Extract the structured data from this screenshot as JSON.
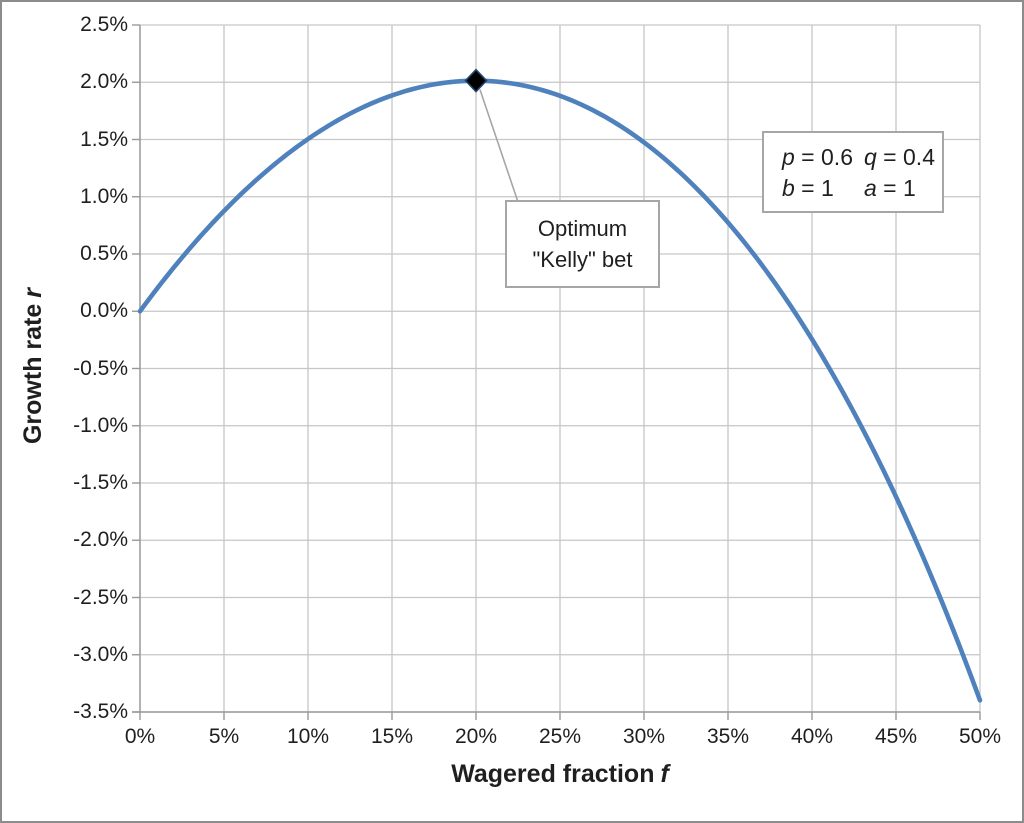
{
  "chart_data": {
    "type": "line",
    "title": "",
    "xlabel": {
      "text": "Wagered fraction",
      "symbol": "f"
    },
    "ylabel": {
      "text": "Growth rate",
      "symbol": "r"
    },
    "xlim": [
      0,
      0.5
    ],
    "ylim": [
      -0.035,
      0.025
    ],
    "grid": true,
    "x_ticks": [
      "0%",
      "5%",
      "10%",
      "15%",
      "20%",
      "25%",
      "30%",
      "35%",
      "40%",
      "45%",
      "50%"
    ],
    "y_ticks": [
      "2.5%",
      "2.0%",
      "1.5%",
      "1.0%",
      "0.5%",
      "0.0%",
      "-0.5%",
      "-1.0%",
      "-1.5%",
      "-2.0%",
      "-2.5%",
      "-3.0%",
      "-3.5%"
    ],
    "series": [
      {
        "name": "growth-rate-curve",
        "color": "#4f81bd",
        "formula_params": {
          "p": 0.6,
          "q": 0.4,
          "b": 1,
          "a": 1
        },
        "points": [
          [
            0.0,
            0.0
          ],
          [
            0.025,
            0.00469
          ],
          [
            0.05,
            0.00876
          ],
          [
            0.075,
            0.01221
          ],
          [
            0.1,
            0.01504
          ],
          [
            0.125,
            0.01726
          ],
          [
            0.15,
            0.01885
          ],
          [
            0.175,
            0.01981
          ],
          [
            0.2,
            0.02014
          ],
          [
            0.225,
            0.01981
          ],
          [
            0.25,
            0.01881
          ],
          [
            0.275,
            0.01713
          ],
          [
            0.3,
            0.01475
          ],
          [
            0.325,
            0.01164
          ],
          [
            0.35,
            0.00775
          ],
          [
            0.375,
            0.00307
          ],
          [
            0.4,
            -0.00245
          ],
          [
            0.425,
            -0.00885
          ],
          [
            0.45,
            -0.0162
          ],
          [
            0.475,
            -0.02455
          ],
          [
            0.5,
            -0.03398
          ]
        ]
      }
    ],
    "marker": {
      "f": 0.2,
      "r": 0.02014,
      "fill": "#000000",
      "stroke": "#24466e"
    },
    "annotation": {
      "lines": [
        "Optimum",
        "\"Kelly\" bet"
      ]
    },
    "param_box": {
      "rows": [
        [
          {
            "var": "p",
            "val": "0.6"
          },
          {
            "var": "q",
            "val": "0.4"
          }
        ],
        [
          {
            "var": "b",
            "val": "1"
          },
          {
            "var": "a",
            "val": "1"
          }
        ]
      ]
    },
    "colors": {
      "gridline": "#c6c6c6",
      "axis": "#999999",
      "curve": "#4f81bd",
      "leader_line": "#a6a6a6",
      "box_border": "#a6a6a6",
      "text": "#1f1f1f",
      "frame": "#8c8c8c",
      "background": "#ffffff"
    }
  }
}
